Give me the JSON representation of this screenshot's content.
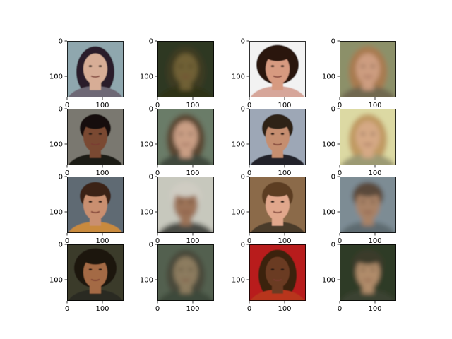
{
  "figure": {
    "rows": 4,
    "cols": 4,
    "background": "#ffffff",
    "axis_color": "#000000"
  },
  "chart_data": {
    "type": "image_grid",
    "title": "",
    "xlabel": "",
    "ylabel": "",
    "x_ticks": [
      0,
      100
    ],
    "y_ticks": [
      0,
      100
    ],
    "xlim": [
      0,
      160
    ],
    "ylim": [
      160,
      0
    ],
    "image_size": [
      160,
      160
    ],
    "panels": [
      {
        "row": 0,
        "col": 0,
        "kind": "photo",
        "bg": "#8fa7ae",
        "skin": "#d7ad96",
        "hair": "#2a1e2c",
        "shirt": "#6e6774",
        "shape": "long"
      },
      {
        "row": 0,
        "col": 1,
        "kind": "reconstruction",
        "bg": "#2e3821",
        "skin": "#6f6034",
        "hair": "#3d3b24",
        "shirt": "#2d3318",
        "shape": "long"
      },
      {
        "row": 0,
        "col": 2,
        "kind": "photo",
        "bg": "#f2f2f2",
        "skin": "#d79a80",
        "hair": "#2b170f",
        "shirt": "#d6a69a",
        "shape": "curly"
      },
      {
        "row": 0,
        "col": 3,
        "kind": "reconstruction",
        "bg": "#8c9069",
        "skin": "#cd9d80",
        "hair": "#a87a4f",
        "shirt": "#6f6850",
        "shape": "long"
      },
      {
        "row": 1,
        "col": 0,
        "kind": "photo",
        "bg": "#7a786f",
        "skin": "#7a4a33",
        "hair": "#18110e",
        "shirt": "#1e1a17",
        "shape": "short"
      },
      {
        "row": 1,
        "col": 1,
        "kind": "reconstruction",
        "bg": "#6b7c68",
        "skin": "#c99e84",
        "hair": "#5a4632",
        "shirt": "#3f4a3c",
        "shape": "long"
      },
      {
        "row": 1,
        "col": 2,
        "kind": "photo",
        "bg": "#9da7b6",
        "skin": "#c58e70",
        "hair": "#2d2119",
        "shirt": "#20202a",
        "shape": "short"
      },
      {
        "row": 1,
        "col": 3,
        "kind": "reconstruction",
        "bg": "#dcd9a3",
        "skin": "#d5a985",
        "hair": "#c09a62",
        "shirt": "#9c9a73",
        "shape": "long"
      },
      {
        "row": 2,
        "col": 0,
        "kind": "photo",
        "bg": "#5f6a73",
        "skin": "#c98f70",
        "hair": "#3a2417",
        "shirt": "#c98a3e",
        "shape": "short"
      },
      {
        "row": 2,
        "col": 1,
        "kind": "reconstruction",
        "bg": "#c7c8bd",
        "skin": "#9c7358",
        "hair": "#cfccc2",
        "shirt": "#4a4c45",
        "shape": "short"
      },
      {
        "row": 2,
        "col": 2,
        "kind": "photo",
        "bg": "#8b6a4a",
        "skin": "#e1a78c",
        "hair": "#5b3c24",
        "shirt": "#4a3a2c",
        "shape": "short"
      },
      {
        "row": 2,
        "col": 3,
        "kind": "reconstruction",
        "bg": "#7d8c94",
        "skin": "#a88266",
        "hair": "#5a4a3b",
        "shirt": "#5d6a70",
        "shape": "short"
      },
      {
        "row": 3,
        "col": 0,
        "kind": "photo",
        "bg": "#3a3a2c",
        "skin": "#a46a44",
        "hair": "#1e140d",
        "shirt": "#2a2a22",
        "shape": "curly"
      },
      {
        "row": 3,
        "col": 1,
        "kind": "reconstruction",
        "bg": "#52604f",
        "skin": "#8c7c5f",
        "hair": "#4a4a3a",
        "shirt": "#3e4a3a",
        "shape": "long"
      },
      {
        "row": 3,
        "col": 2,
        "kind": "photo",
        "bg": "#b81c1c",
        "skin": "#6a3a22",
        "hair": "#3a2010",
        "shirt": "#b8341c",
        "shape": "long"
      },
      {
        "row": 3,
        "col": 3,
        "kind": "reconstruction",
        "bg": "#2f3a26",
        "skin": "#b08c6a",
        "hair": "#3a3a2a",
        "shirt": "#3a4230",
        "shape": "short"
      }
    ]
  }
}
